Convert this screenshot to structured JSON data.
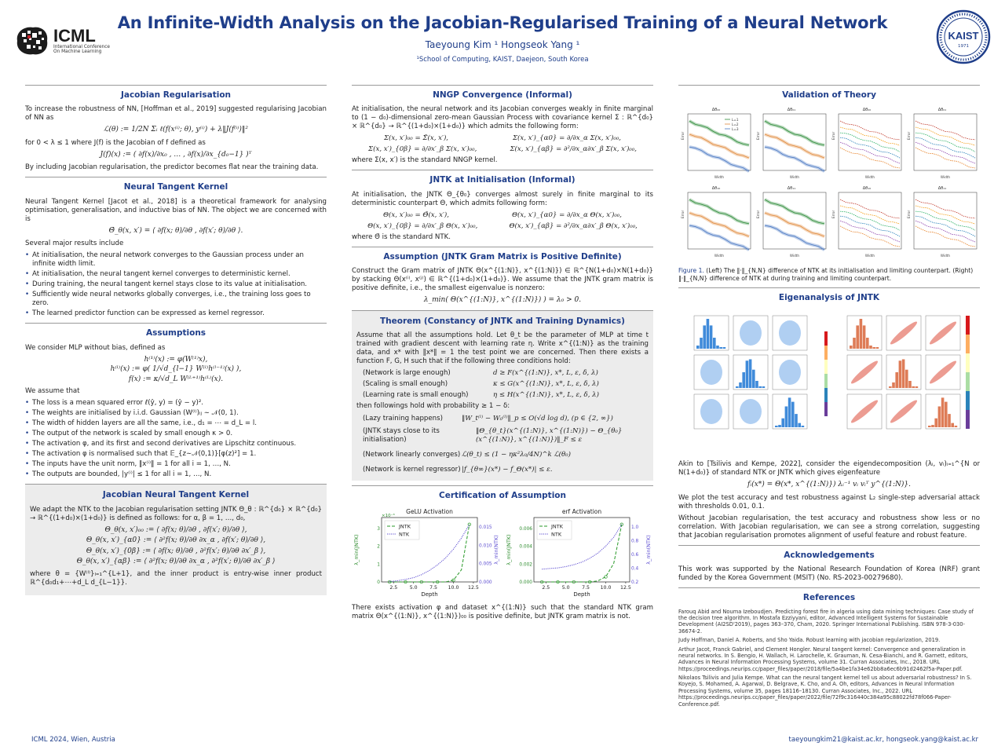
{
  "header": {
    "title": "An Infinite-Width Analysis on the Jacobian-Regularised Training of a Neural Network",
    "authors": "Taeyoung Kim ¹    Hongseok Yang ¹",
    "affiliation": "¹School of Computing, KAIST, Daejeon, South Korea",
    "icml_logo": "ICML",
    "icml_sub1": "International Conference",
    "icml_sub2": "On Machine Learning",
    "kaist_logo": "KAIST",
    "kaist_year": "1971"
  },
  "col1": {
    "jacobian": {
      "heading": "Jacobian Regularisation",
      "p1": "To increase the robustness of NN, [Hoffman et al., 2019] suggested regularising Jacobian of NN as",
      "eq1": "ℒ(θ) := 1/2N Σᵢ ℓ(f(x⁽ⁱ⁾; θ), y⁽ⁱ⁾) + λ‖J(f⁽ⁱ⁾)‖²",
      "p2": "for 0 < λ ≤ 1 where J(f) is the Jacobian of f defined as",
      "eq2": "J(f)(x) := ( ∂f(x)/∂x₀ , … , ∂f(x)/∂x_{d₀−1} )ᵀ",
      "p3": "By including Jacobian regularisation, the predictor becomes flat near the training data."
    },
    "ntk": {
      "heading": "Neural Tangent Kernel",
      "p1": "Neural Tangent Kernel [Jacot et al., 2018] is a theoretical framework for analysing optimisation, generalisation, and inductive bias of NN. The object we are concerned with is",
      "eq1": "Θ̄_θ(x, x′) = ⟨ ∂f(x; θ)/∂θ , ∂f(x′; θ)/∂θ ⟩.",
      "p2": "Several major results include",
      "bullets": [
        "At initialisation, the neural network converges to the Gaussian process under an infinite width limit.",
        "At initialisation, the neural tangent kernel converges to deterministic kernel.",
        "During training, the neural tangent kernel stays close to its value at initialisation.",
        "Sufficiently wide neural networks globally converges, i.e., the training loss goes to zero.",
        "The learned predictor function can be expressed as kernel regressor."
      ]
    },
    "assumptions": {
      "heading": "Assumptions",
      "p1": "We consider MLP without bias, defined as",
      "eq1": "h⁽¹⁾(x) := φ(W⁽¹⁾x),",
      "eq2": "h⁽ˡ⁾(x) := φ( 1/√d_{l−1} W⁽ˡ⁾h⁽ˡ⁻¹⁾(x) ),",
      "eq3": "f(x) := κ/√d_L W⁽ᴸ⁺¹⁾h⁽ᴸ⁾(x).",
      "p2": "We assume that",
      "bullets": [
        "The loss is a mean squared error ℓ(ŷ, y) = (ŷ − y)².",
        "The weights are initialised by i.i.d. Gaussian (W⁽ˡ⁾)ᵢⱼ ∼ 𝒩(0, 1).",
        "The width of hidden layers are all the same, i.e., d₁ = ⋯ = d_L = l.",
        "The output of the network is scaled by small enough κ > 0.",
        "The activation φ, and its first and second derivatives are Lipschitz continuous.",
        "The activation φ is normalised such that 𝔼_{z∼𝒩(0,1)}[φ(z)²] = 1.",
        "The inputs have the unit norm, ‖x⁽ⁱ⁾‖ = 1 for all i = 1, …, N.",
        "The outputs are bounded, |y⁽ⁱ⁾| ≤ 1 for all i = 1, …, N."
      ]
    },
    "jntk": {
      "heading": "Jacobian Neural Tangent Kernel",
      "p1": "We adapt the NTK to the Jacobian regularisation setting JNTK Θ_θ : ℝ^{d₀} × ℝ^{d₀} → ℝ^{(1+d₀)×(1+d₀)} is defined as follows: for α, β = 1, …, d₀,",
      "eqs": [
        "Θ_θ(x, x′)₀₀ := ⟨ ∂f(x; θ)/∂θ , ∂f(x′; θ)/∂θ ⟩,",
        "Θ_θ(x, x′)_{α0} := ⟨ ∂²f(x; θ)/∂θ ∂x_α , ∂f(x′; θ)/∂θ ⟩,",
        "Θ_θ(x, x′)_{0β} := ⟨ ∂f(x; θ)/∂θ , ∂²f(x′; θ)/∂θ ∂x′_β ⟩,",
        "Θ_θ(x, x′)_{αβ} := ⟨ ∂²f(x; θ)/∂θ ∂x_α , ∂²f(x′; θ)/∂θ ∂x′_β ⟩"
      ],
      "p2": "where θ = {W⁽ˡ⁾}ₗ₌₁^{L+1}, and the inner product is entry-wise inner product ℝ^{d₀d₁+⋯+d_L d_{L−1}}."
    }
  },
  "col2": {
    "nngp": {
      "heading": "NNGP Convergence (Informal)",
      "p1": "At initialisation, the neural network and its Jacobian converges weakly in finite marginal to (1 − d₀)-dimensional zero-mean Gaussian Process with covariance kernel Σ : ℝ^{d₀} × ℝ^{d₀} → ℝ^{(1+d₀)×(1+d₀)} which admits the following form:",
      "eqs": [
        "Σ(x, x′)₀₀ = Σ̄(x, x′),",
        "Σ(x, x′)_{α0} = ∂/∂x_α Σ(x, x′)₀₀,",
        "Σ(x, x′)_{0β} = ∂/∂x′_β Σ(x, x′)₀₀,",
        "Σ(x, x′)_{αβ} = ∂²/∂x_α∂x′_β Σ(x, x′)₀₀,"
      ],
      "p2": "where Σ̄(x, x′) is the standard NNGP kernel."
    },
    "jntk_init": {
      "heading": "JNTK at Initialisation (Informal)",
      "p1": "At initialisation, the JNTK Θ_{θ₀} converges almost surely in finite marginal to its deterministic counterpart Θ, which admits following form:",
      "eqs": [
        "Θ(x, x′)₀₀ = Θ̄(x, x′),",
        "Θ(x, x′)_{α0} = ∂/∂x_α Θ(x, x′)₀₀,",
        "Θ(x, x′)_{0β} = ∂/∂x′_β Θ(x, x′)₀₀,",
        "Θ(x, x′)_{αβ} = ∂²/∂x_α∂x′_β Θ(x, x′)₀₀,"
      ],
      "p2": "where Θ̄ is the standard NTK."
    },
    "assumption_gram": {
      "heading": "Assumption (JNTK Gram Matrix is Positive Definite)",
      "p1": "Construct the Gram matrix of JNTK Θ(x^{(1:N)}, x^{(1:N)}) ∈ ℝ^{N(1+d₀)×N(1+d₀)} by stacking Θ(x⁽ⁱ⁾, x⁽ʲ⁾) ∈ ℝ^{(1+d₀)×(1+d₀)}. We assume that the JNTK gram matrix is positive definite, i.e., the smallest eigenvalue is nonzero:",
      "eq": "λ_min( Θ(x^{(1:N)}, x^{(1:N)}) ) = λ₀ > 0."
    },
    "theorem": {
      "heading": "Theorem (Constancy of JNTK and Training Dynamics)",
      "p1": "Assume that all the assumptions hold. Let θ_t be the parameter of MLP at time t trained with gradient descent with learning rate η. Write x^{(1:N)} as the training data, and x* with ‖x*‖ = 1 the test point we are concerned. Then there exists a function F, G, H such that if the following three conditions hold:",
      "conds": [
        {
          "label": "(Network is large enough)",
          "math": "d ≥ F(x^{(1:N)}, x*, L, ε, δ, λ)"
        },
        {
          "label": "(Scaling is small enough)",
          "math": "κ ≤ G(x^{(1:N)}, x*, L, ε, δ, λ)"
        },
        {
          "label": "(Learning rate is small enough)",
          "math": "η ≤ H(x^{(1:N)}, x*, L, ε, δ, λ)"
        }
      ],
      "p2": "then followings hold with probability ≥ 1 − δ:",
      "results": [
        {
          "label": "(Lazy training happens)",
          "math": "‖W_t⁽ˡ⁾ − W₀⁽ˡ⁾‖_p ≤ O(√d log d),   (p ∈ {2, ∞})"
        },
        {
          "label": "(JNTK stays close to its initialisation)",
          "math": "‖Θ_{θ_t}(x^{(1:N)}, x^{(1:N)}) − Θ_{θ₀}(x^{(1:N)}, x^{(1:N)})‖_F ≤ ε"
        },
        {
          "label": "(Network linearly converges)",
          "math": "ℒ(θ_t) ≤ (1 − ηκ²λ₀/4N)^k ℒ(θ₀)"
        },
        {
          "label": "(Network is kernel regressor)",
          "math": "|f_{θ∞}(x*) − f_Θ(x*)| ≤ ε."
        }
      ]
    },
    "certification": {
      "heading": "Certification of Assumption",
      "p1": "There exists activation φ and dataset x^{(1:N)} such that the standard NTK gram matrix Θ(x^{(1:N)}, x^{(1:N)})₀₀ is positive definite, but JNTK gram matrix is not."
    }
  },
  "col3": {
    "validation": {
      "heading": "Validation of Theory",
      "caption_label": "Figure 1.",
      "caption": "(Left) The ‖·‖_{N,N} difference of NTK at its initialisation and limiting counterpart. (Right) ‖·‖_{N,N} difference of NTK at during training and limiting counterpart.",
      "subplot_titles": [
        "Δθ₀₀",
        "Δθ₀₁",
        "Δθ₀₀",
        "Δθ₀₁",
        "Δθ₁₀",
        "Δθ₁₁",
        "Δθ₁₀",
        "Δθ₁₁"
      ],
      "ylabel": "Error",
      "xlabel": "Width",
      "legend": [
        "L=1",
        "L=2",
        "L=3"
      ]
    },
    "eigen": {
      "heading": "Eigenanalysis of JNTK",
      "p1": "Akin to [Tsilivis and Kempe, 2022], consider the eigendecomposition (λᵢ, vᵢ)ᵢ₌₁^{N or N(1+d₀)} of standard NTK or JNTK which gives eigenfeature",
      "eq": "fᵢ(x*) = Θ(x*, x^{(1:N)}) λᵢ⁻¹ vᵢ vᵢᵀ y^{(1:N)}.",
      "p2": "We plot the test accuracy and test robustness against L₂ single-step adversarial attack with thresholds 0.01, 0.1.",
      "p3": "Without Jacobian regularisation, the test accuracy and robustness show less or no correlation. With Jacobian regularisation, we can see a strong correlation, suggesting that Jacobian regularisation promotes alignment of useful feature and robust feature."
    },
    "ack": {
      "heading": "Acknowledgements",
      "p1": "This work was supported by the National Research Foundation of Korea (NRF) grant funded by the Korea Government (MSIT) (No. RS-2023-00279680)."
    },
    "references": {
      "heading": "References",
      "items": [
        "Farouq Abid and Nouma Izeboudjen. Predicting forest fire in algeria using data mining techniques: Case study of the decision tree algorithm. In Mostafa Ezziyyani, editor, Advanced Intelligent Systems for Sustainable Development (AI2SD'2019), pages 363–370, Cham, 2020. Springer International Publishing. ISBN 978-3-030-36674-2.",
        "Judy Hoffman, Daniel A. Roberts, and Sho Yaida. Robust learning with jacobian regularization, 2019.",
        "Arthur Jacot, Franck Gabriel, and Clement Hongler. Neural tangent kernel: Convergence and generalization in neural networks. In S. Bengio, H. Wallach, H. Larochelle, K. Grauman, N. Cesa-Bianchi, and R. Garnett, editors, Advances in Neural Information Processing Systems, volume 31. Curran Associates, Inc., 2018. URL https://proceedings.neurips.cc/paper_files/paper/2018/file/5a4be1fa34e62bb8a6ec6b91d2462f5a-Paper.pdf.",
        "Nikolaos Tsilivis and Julia Kempe. What can the neural tangent kernel tell us about adversarial robustness? In S. Koyejo, S. Mohamed, A. Agarwal, D. Belgrave, K. Cho, and A. Oh, editors, Advances in Neural Information Processing Systems, volume 35, pages 18116–18130. Curran Associates, Inc., 2022. URL https://proceedings.neurips.cc/paper_files/paper/2022/file/72f9c316440c384a95c88022fd78f066-Paper-Conference.pdf."
      ]
    }
  },
  "chart_data": [
    {
      "type": "line",
      "title": "GeLU Activation",
      "xlabel": "Depth",
      "ylabel": "λ_min(JNTK)",
      "ylabel_right": "λ_min(NTK)",
      "y_exponent": "×10⁻³",
      "x_ticks": [
        "2.5",
        "5.0",
        "7.5",
        "10.0",
        "12.5"
      ],
      "y_ticks_left": [
        "0",
        "1",
        "2",
        "3"
      ],
      "y_ticks_right": [
        "0.000",
        "0.005",
        "0.010",
        "0.015"
      ],
      "xlim": [
        1,
        13
      ],
      "legend": [
        "JNTK",
        "NTK"
      ],
      "series": [
        {
          "name": "JNTK",
          "x": [
            2,
            3,
            4,
            5,
            6,
            7,
            8,
            9,
            10,
            11,
            12
          ],
          "values": [
            0,
            0,
            0,
            0,
            0,
            0,
            0,
            0,
            0.08,
            0.55,
            2.6
          ]
        },
        {
          "name": "NTK",
          "x": [
            2,
            3,
            4,
            5,
            6,
            7,
            8,
            9,
            10,
            11,
            12
          ],
          "values": [
            0.0001,
            0.0003,
            0.0006,
            0.001,
            0.0017,
            0.0027,
            0.004,
            0.0056,
            0.0077,
            0.0103,
            0.0135
          ]
        }
      ]
    },
    {
      "type": "line",
      "title": "erf Activation",
      "xlabel": "Depth",
      "ylabel": "λ_min(JNTK)",
      "ylabel_right": "λ_min(NTK)",
      "x_ticks": [
        "2.5",
        "5.0",
        "7.5",
        "10.0",
        "12.5"
      ],
      "y_ticks_left": [
        "0.000",
        "0.002",
        "0.004",
        "0.006"
      ],
      "y_ticks_right": [
        "0.2",
        "0.4",
        "0.6",
        "0.8",
        "1.0"
      ],
      "xlim": [
        1,
        13
      ],
      "legend": [
        "JNTK",
        "NTK"
      ],
      "series": [
        {
          "name": "JNTK",
          "x": [
            2,
            3,
            4,
            5,
            6,
            7,
            8,
            9,
            10,
            11,
            12
          ],
          "values": [
            0,
            0,
            0,
            0,
            0,
            0,
            0,
            0.0001,
            0.0005,
            0.0018,
            0.0056
          ]
        },
        {
          "name": "NTK",
          "x": [
            2,
            3,
            4,
            5,
            6,
            7,
            8,
            9,
            10,
            11,
            12
          ],
          "values": [
            0.2,
            0.21,
            0.22,
            0.24,
            0.27,
            0.31,
            0.37,
            0.45,
            0.56,
            0.7,
            0.9
          ]
        }
      ]
    }
  ],
  "footer": {
    "left": "ICML 2024, Wien, Austria",
    "right": "taeyoungkim21@kaist.ac.kr, hongseok.yang@kaist.ac.kr"
  }
}
